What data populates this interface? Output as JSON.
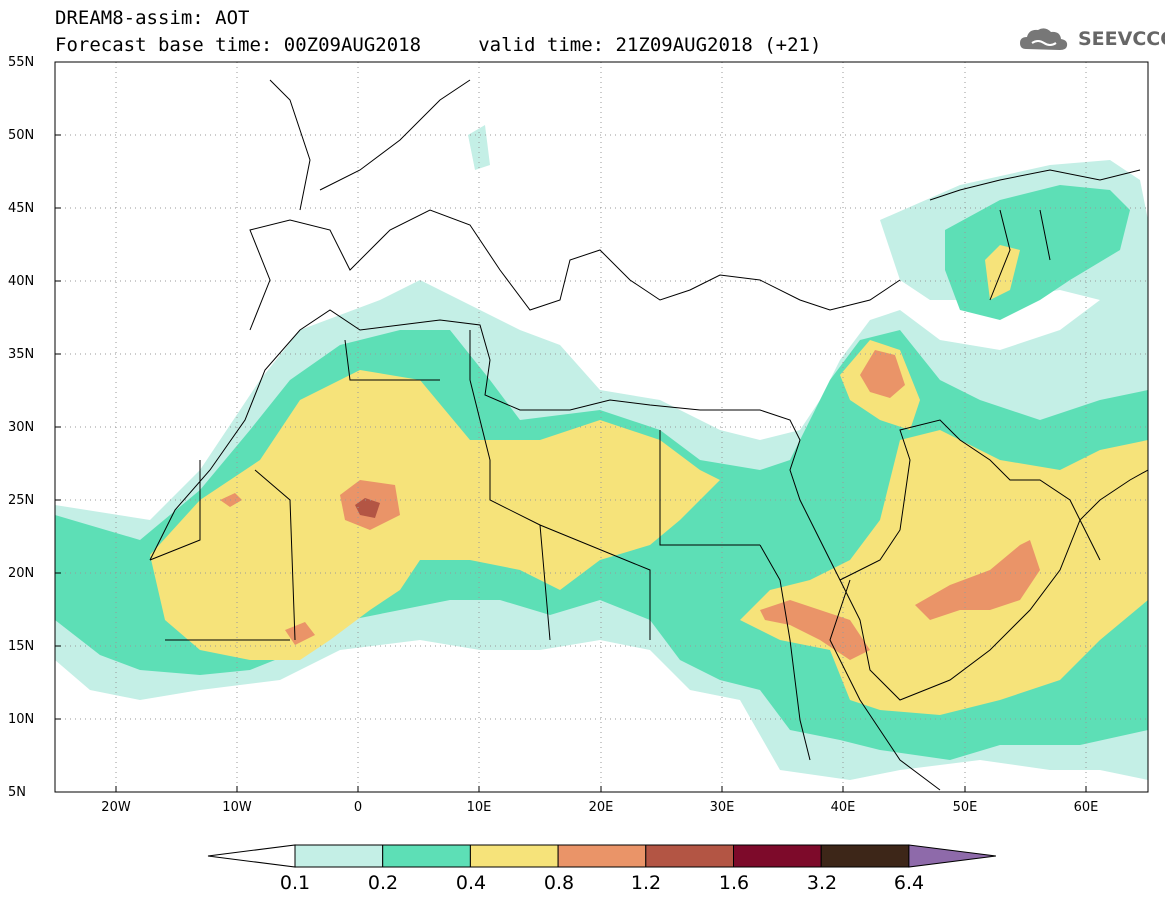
{
  "header": {
    "title_line1": "DREAM8-assim: AOT",
    "title_line2": "Forecast base time: 00Z09AUG2018     valid time: 21Z09AUG2018 (+21)",
    "logo_text": "SEEVCCC",
    "logo_icon": "cloud-logo-icon"
  },
  "map": {
    "lon_range": [
      -25,
      65
    ],
    "lat_range": [
      5,
      55
    ],
    "grid": "dotted",
    "lat_labels": [
      "55N",
      "50N",
      "45N",
      "40N",
      "35N",
      "30N",
      "25N",
      "20N",
      "15N",
      "10N",
      "5N"
    ],
    "lat_values": [
      55,
      50,
      45,
      40,
      35,
      30,
      25,
      20,
      15,
      10,
      5
    ],
    "lon_labels": [
      "20W",
      "10W",
      "0",
      "10E",
      "20E",
      "30E",
      "40E",
      "50E",
      "60E"
    ],
    "lon_values": [
      -20,
      -10,
      0,
      10,
      20,
      30,
      40,
      50,
      60
    ]
  },
  "colorbar": {
    "labels": [
      "0.1",
      "0.2",
      "0.4",
      "0.8",
      "1.2",
      "1.6",
      "3.2",
      "6.4"
    ],
    "colors": [
      "#c4efe6",
      "#5ddfb6",
      "#f6e37a",
      "#ea9468",
      "#b35544",
      "#7d0a2a",
      "#3d2618",
      "#8e6aaa"
    ],
    "lower_color": "#ffffff"
  },
  "field_colors": {
    "c01": "#c4efe6",
    "c02": "#5ddfb6",
    "c04": "#f6e37a",
    "c08": "#ea9468",
    "c12": "#b35544"
  }
}
